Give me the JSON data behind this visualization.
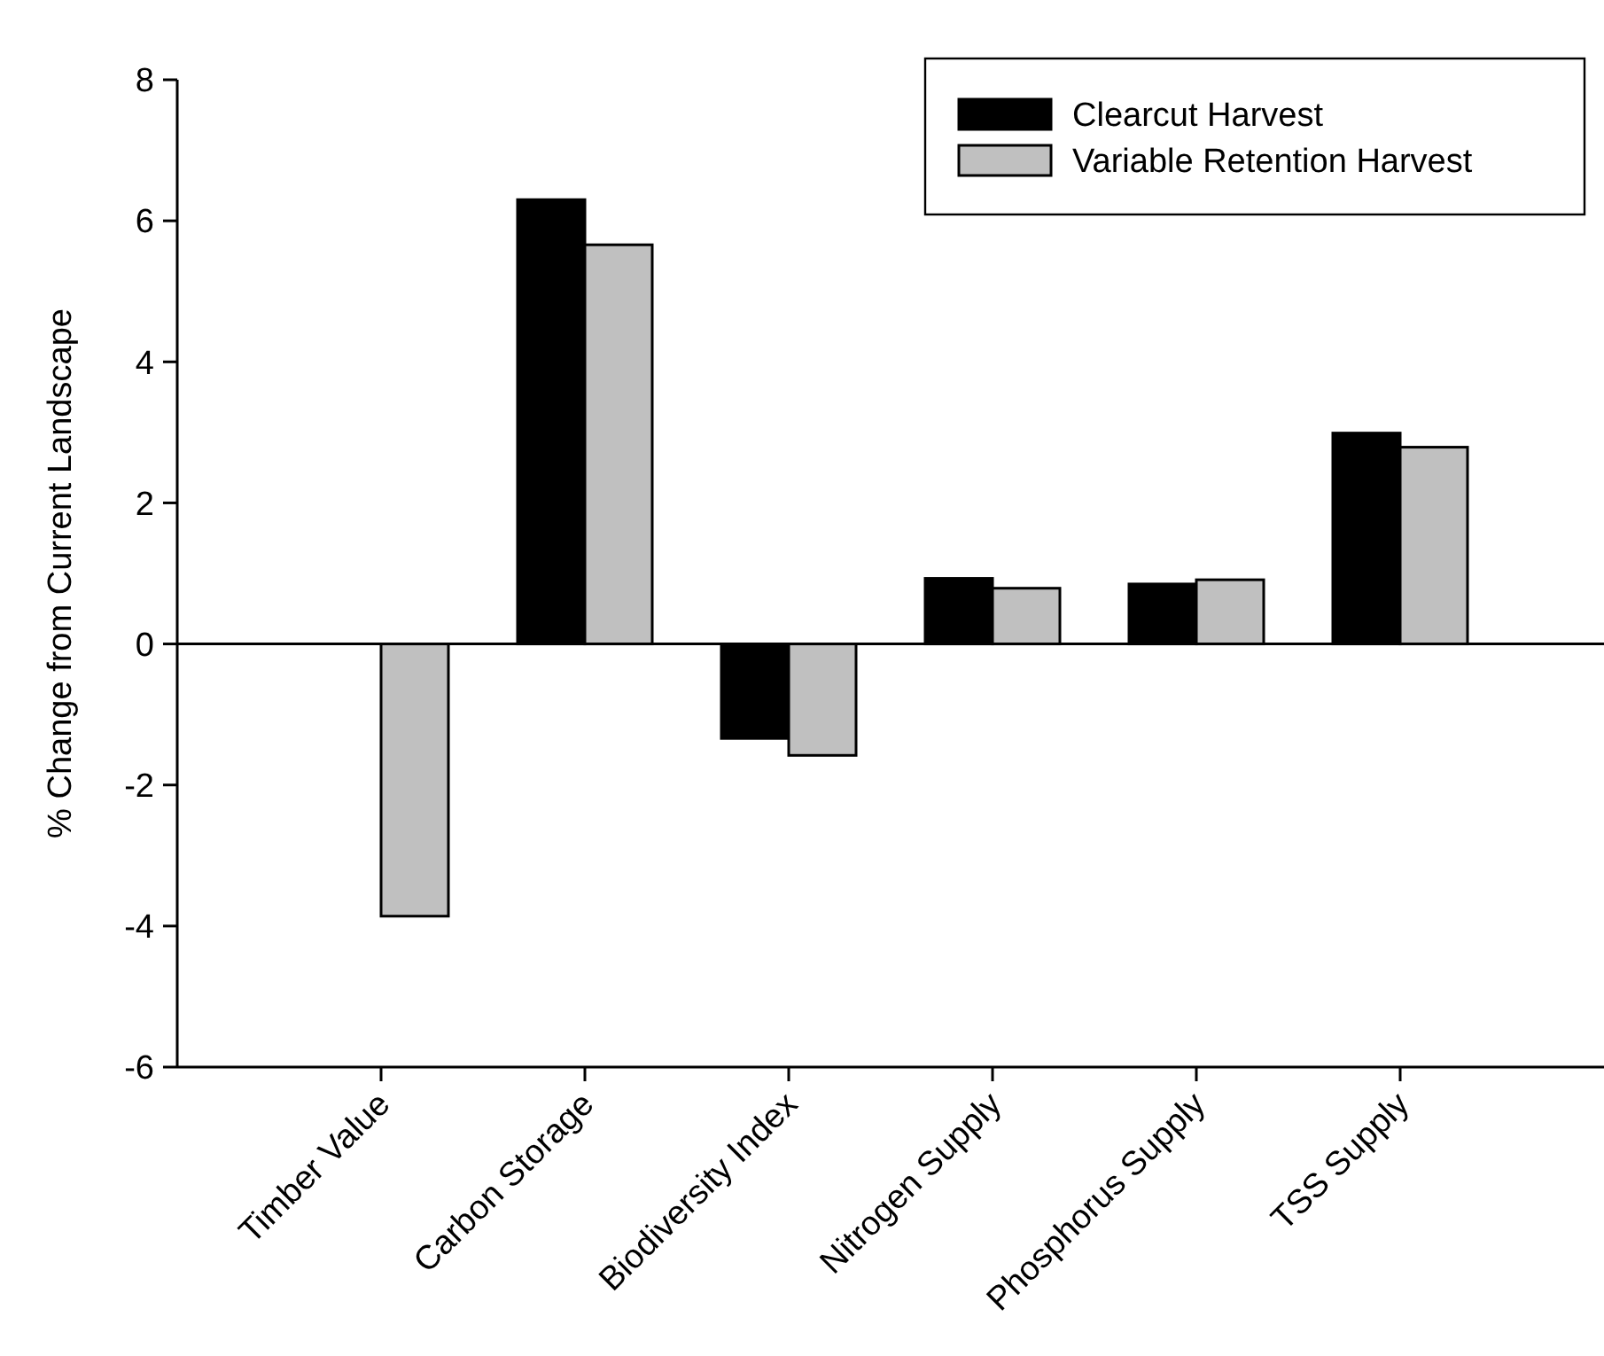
{
  "chart_data": {
    "type": "bar",
    "ylabel": "% Change from Current Landscape",
    "categories": [
      "Timber Value",
      "Carbon Storage",
      "Biodiversity Index",
      "Nitrogen Supply",
      "Phosphorus Supply",
      "TSS Supply"
    ],
    "series": [
      {
        "name": "Clearcut Harvest",
        "color": "#000000",
        "values": [
          null,
          6.3,
          -1.34,
          0.93,
          0.85,
          2.99
        ]
      },
      {
        "name": "Variable Retention Harvest",
        "color": "#c0c0c0",
        "values": [
          -3.86,
          5.66,
          -1.58,
          0.79,
          0.91,
          2.79
        ]
      }
    ],
    "ylim": [
      -6,
      8
    ],
    "yticks": [
      -6,
      -4,
      -2,
      0,
      2,
      4,
      6,
      8
    ],
    "ref_lines": [
      {
        "axis": "y",
        "value": 0
      }
    ],
    "legend": "top right"
  }
}
